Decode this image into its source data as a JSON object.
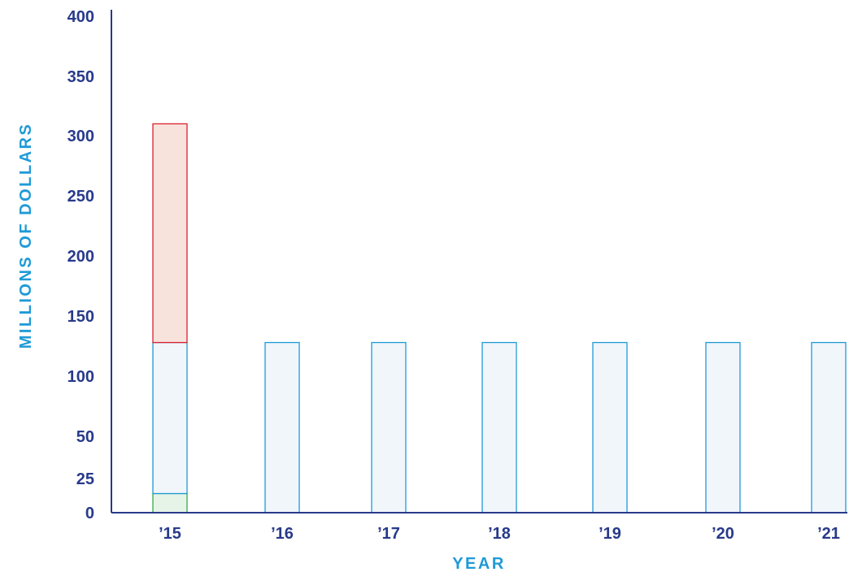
{
  "chart_data": {
    "type": "bar",
    "stacked": true,
    "xlabel": "YEAR",
    "ylabel": "MILLIONS OF DOLLARS",
    "ylim": [
      0,
      400
    ],
    "yticks": [
      0,
      25,
      50,
      100,
      150,
      200,
      250,
      300,
      350,
      400
    ],
    "categories": [
      "’15",
      "’16",
      "’17",
      "’18",
      "’19",
      "’20",
      "’21"
    ],
    "series": [
      {
        "color": "#3aa64a",
        "fill": "#e6f4e8",
        "values": [
          14,
          0,
          0,
          0,
          0,
          0,
          0
        ]
      },
      {
        "color": "#1f9ad6",
        "fill": "#f1f6fb",
        "values": [
          114,
          128,
          128,
          128,
          128,
          128,
          128
        ]
      },
      {
        "color": "#d9202e",
        "fill": "#f8e3dc",
        "values": [
          182,
          0,
          0,
          0,
          0,
          0,
          0
        ]
      }
    ],
    "grid": false,
    "legend": "none",
    "axis_color": "#283a8a",
    "tick_color": "#283a8a",
    "label_color": "#1f9ad6"
  }
}
